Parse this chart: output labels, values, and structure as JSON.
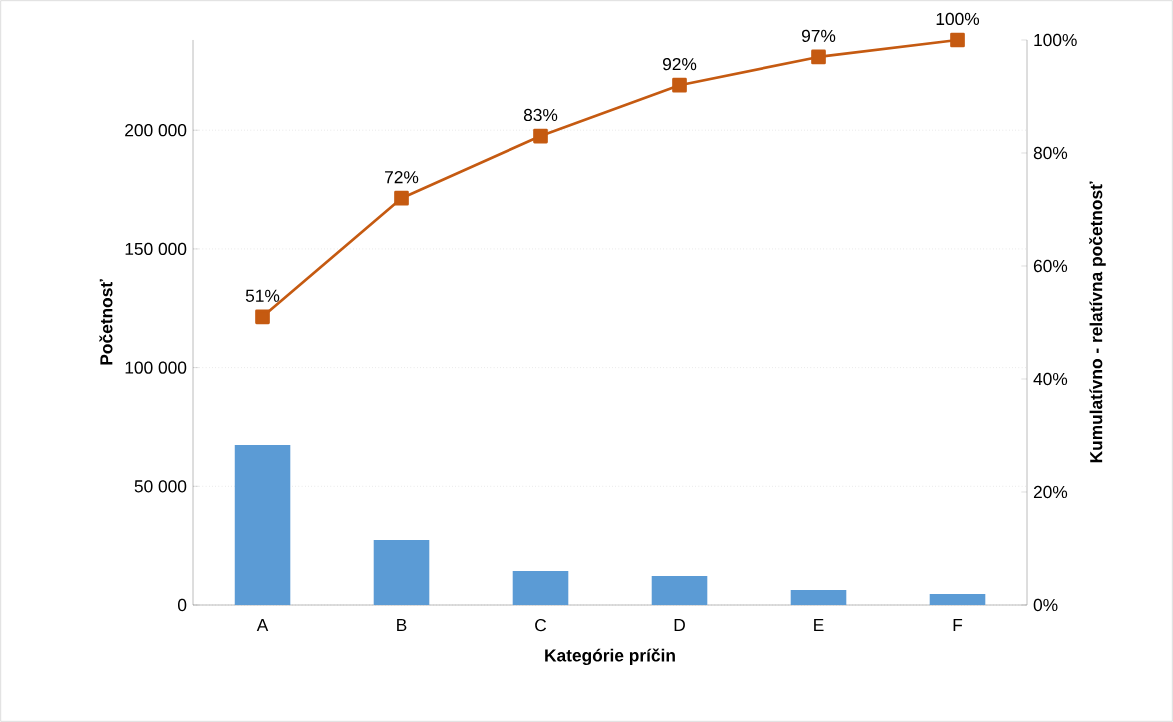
{
  "chart_data": {
    "type": "bar",
    "xlabel": "Kategórie príčin",
    "ylabel": "Početnosť",
    "y2label": "Kumulatívno - relatívna početnosť",
    "categories": [
      "A",
      "B",
      "C",
      "D",
      "E",
      "F"
    ],
    "series": [
      {
        "color": "#5b9bd5",
        "values": [
          67400,
          27400,
          14300,
          12200,
          6300,
          4600
        ]
      },
      {
        "type": "line",
        "axis": "y2",
        "color": "#c55a11",
        "values": [
          51,
          72,
          83,
          92,
          97,
          100
        ],
        "value_labels": [
          "51%",
          "72%",
          "83%",
          "92%",
          "97%",
          "100%"
        ]
      }
    ],
    "ylim": [
      0,
      238000
    ],
    "yticks": [
      0,
      {
        "value": 50000,
        "label": "50 000"
      },
      {
        "value": 100000,
        "label": "100 000"
      },
      {
        "value": 150000,
        "label": "150 000"
      },
      {
        "value": 200000,
        "label": "200 000"
      }
    ],
    "y2lim": [
      0,
      100
    ],
    "y2ticks": [
      {
        "value": 0,
        "label": "0%"
      },
      {
        "value": 20,
        "label": "20%"
      },
      {
        "value": 40,
        "label": "40%"
      },
      {
        "value": 60,
        "label": "60%"
      },
      {
        "value": 80,
        "label": "80%"
      },
      {
        "value": 100,
        "label": "100%"
      }
    ],
    "grid": "y",
    "marker": "square"
  }
}
